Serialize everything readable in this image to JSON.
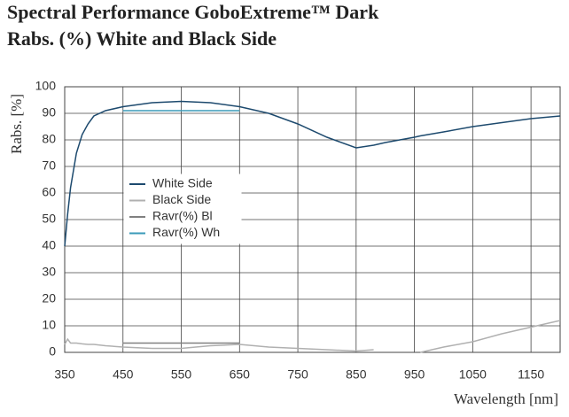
{
  "chart_data": {
    "type": "line",
    "title": "Spectral Performance GoboExtreme™ Dark",
    "subtitle": "Rabs. (%) White and Black Side",
    "ylabel": "Rabs. [%]",
    "xlabel": "Wavelength [nm]",
    "x": [
      350,
      355,
      360,
      370,
      380,
      390,
      400,
      420,
      450,
      500,
      550,
      600,
      650,
      700,
      750,
      800,
      850,
      880,
      900,
      950,
      960,
      1000,
      1050,
      1100,
      1150,
      1200
    ],
    "series": [
      {
        "name": "White Side",
        "color": "#1d4a6e",
        "values": [
          40,
          52,
          62,
          75,
          82,
          86,
          89,
          91,
          92.5,
          94,
          94.5,
          94,
          92.5,
          90,
          86,
          81,
          77,
          78,
          79,
          81,
          81.5,
          83,
          85,
          86.5,
          88,
          89
        ]
      },
      {
        "name": "Black Side",
        "color": "#b0b0b0",
        "values": [
          3,
          5,
          3.5,
          3.5,
          3.2,
          3,
          3,
          2.5,
          2,
          1.5,
          1.5,
          2.5,
          3,
          2,
          1.5,
          1,
          0.5,
          1,
          null,
          null,
          0,
          2,
          4,
          7,
          9.5,
          12
        ]
      },
      {
        "name": "Ravr(%) Bl",
        "color": "#808080",
        "values": [
          null,
          null,
          null,
          null,
          null,
          null,
          null,
          null,
          3.5,
          3.5,
          3.5,
          3.5,
          3.5,
          null,
          null,
          null,
          null,
          null,
          null,
          null,
          null,
          null,
          null,
          null,
          null,
          null
        ]
      },
      {
        "name": "Ravr(%) Wh",
        "color": "#3a9ab8",
        "values": [
          null,
          null,
          null,
          null,
          null,
          null,
          null,
          null,
          91,
          91,
          91,
          91,
          91,
          null,
          null,
          null,
          null,
          null,
          null,
          null,
          null,
          null,
          null,
          null,
          null,
          null
        ]
      }
    ],
    "xlim": [
      350,
      1200
    ],
    "ylim": [
      0,
      100
    ],
    "xticks": [
      350,
      450,
      550,
      650,
      750,
      850,
      950,
      1050,
      1150
    ],
    "yticks": [
      0,
      10,
      20,
      30,
      40,
      50,
      60,
      70,
      80,
      90,
      100
    ],
    "grid": true
  }
}
